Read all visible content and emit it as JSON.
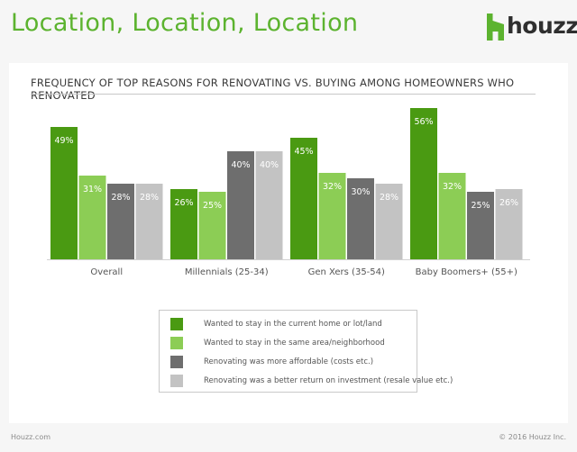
{
  "header": {
    "title": "Location, Location, Location",
    "logo_text": "houzz"
  },
  "footer": {
    "left": "Houzz.com",
    "right": "© 2016 Houzz Inc."
  },
  "colors": {
    "title_green": "#5cb32f",
    "dark_green": "#4a9a12",
    "light_green": "#8ccd55",
    "dark_gray": "#6e6e6e",
    "light_gray": "#c3c3c3"
  },
  "chart_data": {
    "type": "bar",
    "title": "FREQUENCY OF TOP REASONS FOR RENOVATING VS. BUYING AMONG HOMEOWNERS WHO RENOVATED",
    "categories": [
      "Overall",
      "Millennials (25-34)",
      "Gen Xers (35-54)",
      "Baby Boomers+ (55+)"
    ],
    "series": [
      {
        "name": "Wanted to stay in the current home or lot/land",
        "color": "#4a9a12",
        "values": [
          49,
          26,
          45,
          56
        ]
      },
      {
        "name": "Wanted to stay in the same area/neighborhood",
        "color": "#8ccd55",
        "values": [
          31,
          25,
          32,
          32
        ]
      },
      {
        "name": "Renovating was more affordable (costs etc.)",
        "color": "#6e6e6e",
        "values": [
          28,
          40,
          30,
          25
        ]
      },
      {
        "name": "Renovating was a better return on investment (resale value etc.)",
        "color": "#c3c3c3",
        "values": [
          28,
          40,
          28,
          26
        ]
      }
    ],
    "value_suffix": "%",
    "ylim": [
      0,
      60
    ],
    "grid": false,
    "legend_position": "bottom-center"
  }
}
